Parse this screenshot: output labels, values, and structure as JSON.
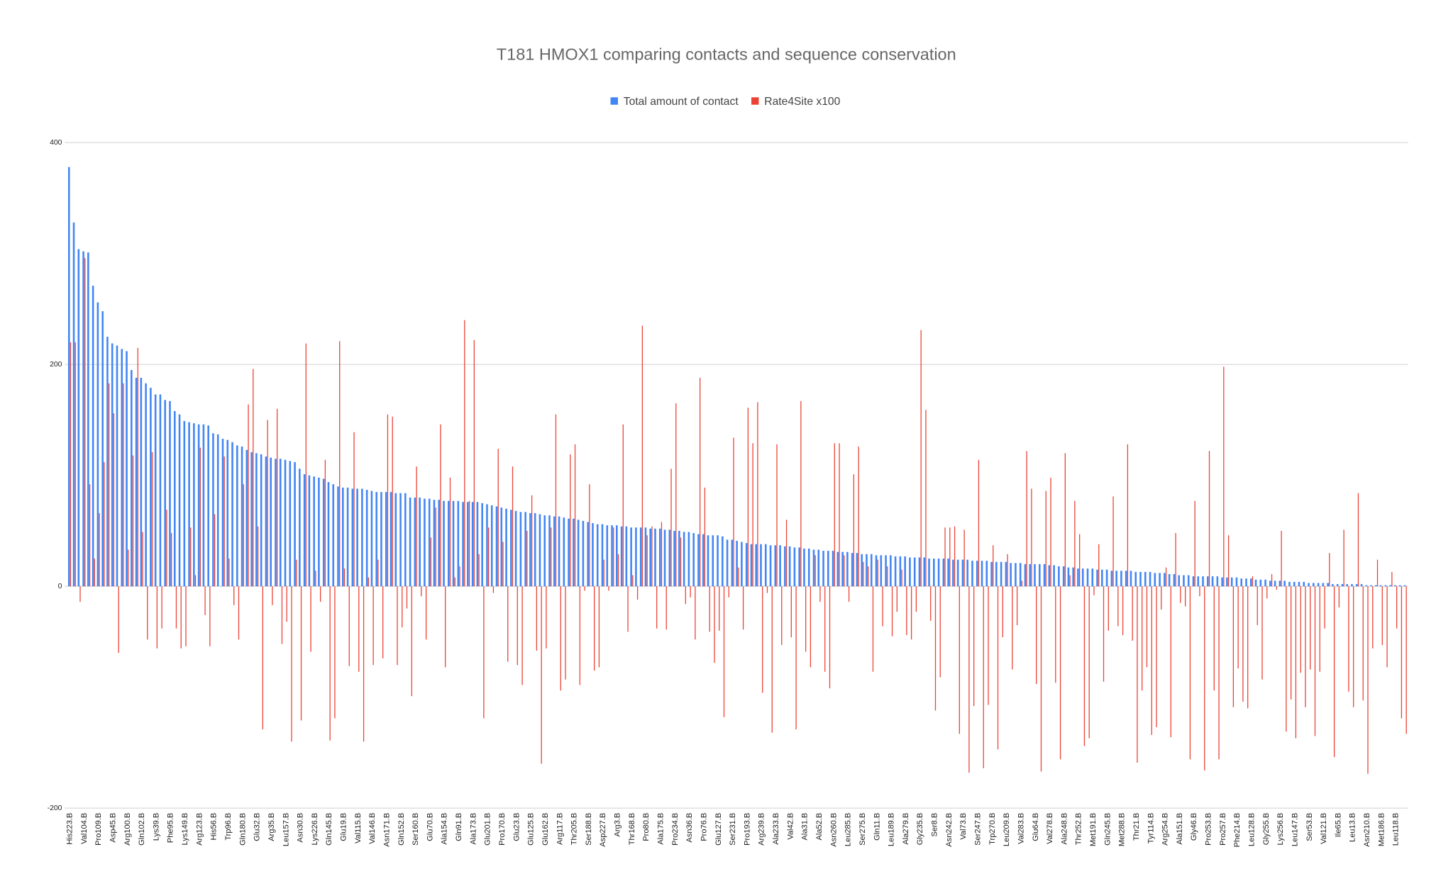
{
  "chart_data": {
    "type": "bar",
    "title": "T181 HMOX1 comparing contacts and sequence conservation",
    "legend": "top",
    "grid": true,
    "ylim": [
      -200,
      400
    ],
    "yticks": [
      -200,
      0,
      200,
      400
    ],
    "categories": [
      "His223.B",
      null,
      null,
      "Val104.B",
      null,
      null,
      "Pro109.B",
      null,
      null,
      "Asp45.B",
      null,
      null,
      "Arg100.B",
      null,
      null,
      "Gln102.B",
      null,
      null,
      "Lys39.B",
      null,
      null,
      "Phe95.B",
      null,
      null,
      "Lys149.B",
      null,
      null,
      "Arg123.B",
      null,
      null,
      "His56.B",
      null,
      null,
      "Trp96.B",
      null,
      null,
      "Gln180.B",
      null,
      null,
      "Glu32.B",
      null,
      null,
      "Arg35.B",
      null,
      null,
      "Leu157.B",
      null,
      null,
      "Asn30.B",
      null,
      null,
      "Lys226.B",
      null,
      null,
      "Gln145.B",
      null,
      null,
      "Glu19.B",
      null,
      null,
      "Val115.B",
      null,
      null,
      "Val146.B",
      null,
      null,
      "Asn171.B",
      null,
      null,
      "Gln152.B",
      null,
      null,
      "Ser160.B",
      null,
      null,
      "Glu70.B",
      null,
      null,
      "Ala154.B",
      null,
      null,
      "Gln91.B",
      null,
      null,
      "Ala173.B",
      null,
      null,
      "Glu201.B",
      null,
      null,
      "Pro170.B",
      null,
      null,
      "Glu23.B",
      null,
      null,
      "Glu125.B",
      null,
      null,
      "Glu162.B",
      null,
      null,
      "Arg117.B",
      null,
      null,
      "Thr205.B",
      null,
      null,
      "Ser188.B",
      null,
      null,
      "Asp227.B",
      null,
      null,
      "Arg3.B",
      null,
      null,
      "Thr168.B",
      null,
      null,
      "Pro80.B",
      null,
      null,
      "Ala175.B",
      null,
      null,
      "Pro234.B",
      null,
      null,
      "Asn36.B",
      null,
      null,
      "Pro76.B",
      null,
      null,
      "Glu127.B",
      null,
      null,
      "Ser231.B",
      null,
      null,
      "Pro193.B",
      null,
      null,
      "Arg239.B",
      null,
      null,
      "Ala233.B",
      null,
      null,
      "Val42.B",
      null,
      null,
      "Ala31.B",
      null,
      null,
      "Ala52.B",
      null,
      null,
      "Asn260.B",
      null,
      null,
      "Leu285.B",
      null,
      null,
      "Ser275.B",
      null,
      null,
      "Gln11.B",
      null,
      null,
      "Leu189.B",
      null,
      null,
      "Ala279.B",
      null,
      null,
      "Gly235.B",
      null,
      null,
      "Ser8.B",
      null,
      null,
      "Asn242.B",
      null,
      null,
      "Val73.B",
      null,
      null,
      "Ser247.B",
      null,
      null,
      "Trp270.B",
      null,
      null,
      "Leu209.B",
      null,
      null,
      "Val283.B",
      null,
      null,
      "Glu64.B",
      null,
      null,
      "Val278.B",
      null,
      null,
      "Ala248.B",
      null,
      null,
      "Thr252.B",
      null,
      null,
      "Met191.B",
      null,
      null,
      "Gln245.B",
      null,
      null,
      "Met288.B",
      null,
      null,
      "Thr21.B",
      null,
      null,
      "Tyr114.B",
      null,
      null,
      "Arg254.B",
      null,
      null,
      "Ala151.B",
      null,
      null,
      "Gly46.B",
      null,
      null,
      "Pro253.B",
      null,
      null,
      "Pro257.B",
      null,
      null,
      "Phe214.B",
      null,
      null,
      "Leu128.B",
      null,
      null,
      "Gly255.B",
      null,
      null,
      "Lys256.B",
      null,
      null,
      "Leu147.B",
      null,
      null,
      "Ser53.B",
      null,
      null,
      "Val121.B",
      null,
      null,
      "Ile65.B",
      null,
      null,
      "Leu13.B",
      null,
      null,
      "Asn210.B",
      null,
      null,
      "Met186.B",
      null,
      null,
      "Leu118.B",
      null,
      null
    ],
    "series": [
      {
        "name": "Total amount of contact",
        "color": "#4285f4",
        "values": [
          378,
          328,
          304,
          302,
          301,
          271,
          256,
          248,
          225,
          219,
          217,
          214,
          212,
          195,
          188,
          188,
          183,
          179,
          173,
          173,
          168,
          167,
          158,
          155,
          149,
          148,
          147,
          146,
          146,
          145,
          138,
          137,
          133,
          132,
          130,
          127,
          126,
          123,
          121,
          120,
          119,
          117,
          116,
          115,
          115,
          114,
          113,
          112,
          106,
          101,
          100,
          99,
          98,
          97,
          94,
          92,
          90,
          89,
          89,
          88,
          88,
          88,
          87,
          86,
          85,
          85,
          85,
          85,
          84,
          84,
          84,
          80,
          80,
          80,
          79,
          79,
          78,
          78,
          77,
          77,
          77,
          77,
          76,
          76,
          76,
          76,
          75,
          74,
          73,
          72,
          71,
          70,
          69,
          68,
          67,
          67,
          66,
          66,
          65,
          64,
          64,
          63,
          63,
          62,
          61,
          61,
          60,
          59,
          58,
          57,
          56,
          56,
          55,
          55,
          55,
          54,
          54,
          53,
          53,
          53,
          53,
          52,
          52,
          52,
          51,
          51,
          50,
          50,
          49,
          49,
          48,
          47,
          47,
          46,
          46,
          46,
          45,
          42,
          42,
          41,
          40,
          39,
          38,
          38,
          38,
          38,
          37,
          37,
          37,
          36,
          36,
          35,
          35,
          34,
          34,
          33,
          33,
          32,
          32,
          32,
          31,
          31,
          31,
          30,
          30,
          29,
          29,
          29,
          28,
          28,
          28,
          28,
          27,
          27,
          27,
          26,
          26,
          26,
          26,
          25,
          25,
          25,
          25,
          25,
          24,
          24,
          24,
          24,
          23,
          23,
          23,
          23,
          22,
          22,
          22,
          22,
          21,
          21,
          21,
          20,
          20,
          20,
          20,
          20,
          19,
          19,
          18,
          18,
          17,
          17,
          16,
          16,
          16,
          16,
          15,
          15,
          15,
          14,
          14,
          14,
          14,
          14,
          13,
          13,
          13,
          13,
          12,
          12,
          12,
          11,
          11,
          10,
          10,
          10,
          9,
          9,
          9,
          9,
          9,
          9,
          8,
          8,
          8,
          8,
          7,
          7,
          7,
          6,
          6,
          6,
          5,
          5,
          5,
          5,
          4,
          4,
          4,
          4,
          3,
          3,
          3,
          3,
          3,
          2,
          2,
          2,
          2,
          2,
          2,
          2,
          1,
          1,
          1,
          1,
          1,
          1,
          1,
          1,
          1
        ]
      },
      {
        "name": "Rate4Site x100",
        "color": "#ea4335",
        "values": [
          220,
          220,
          -14,
          296,
          92,
          25,
          66,
          112,
          183,
          156,
          -60,
          183,
          33,
          118,
          215,
          49,
          -48,
          121,
          -56,
          -38,
          69,
          48,
          -38,
          -56,
          -54,
          53,
          10,
          125,
          -26,
          -54,
          65,
          0,
          117,
          25,
          -17,
          -48,
          92,
          164,
          196,
          54,
          -129,
          150,
          -17,
          160,
          -52,
          -32,
          -140,
          24,
          -121,
          219,
          -59,
          14,
          -14,
          114,
          -139,
          -119,
          221,
          16,
          -72,
          139,
          -77,
          -140,
          8,
          -71,
          24,
          -65,
          155,
          153,
          -71,
          -37,
          -20,
          -99,
          108,
          -9,
          -48,
          44,
          71,
          146,
          -73,
          98,
          8,
          18,
          240,
          77,
          222,
          29,
          -119,
          53,
          -6,
          124,
          40,
          -68,
          108,
          -71,
          -89,
          50,
          82,
          -58,
          -160,
          -56,
          53,
          155,
          -94,
          -84,
          119,
          128,
          -89,
          -4,
          92,
          -76,
          -73,
          24,
          -4,
          53,
          29,
          146,
          -41,
          10,
          -12,
          235,
          46,
          54,
          -38,
          58,
          -39,
          106,
          165,
          44,
          -16,
          -10,
          -48,
          188,
          89,
          -41,
          -69,
          -40,
          -118,
          -10,
          134,
          17,
          -39,
          161,
          129,
          166,
          -96,
          -6,
          -132,
          128,
          -53,
          60,
          -46,
          -129,
          167,
          -59,
          -73,
          28,
          -14,
          -77,
          -92,
          129,
          129,
          28,
          -14,
          101,
          126,
          22,
          18,
          -77,
          24,
          -36,
          18,
          -45,
          -23,
          15,
          -44,
          -48,
          -23,
          231,
          159,
          -31,
          -112,
          -82,
          53,
          53,
          54,
          -133,
          51,
          -168,
          -108,
          114,
          -164,
          -107,
          37,
          -147,
          -46,
          29,
          -75,
          -35,
          5,
          122,
          88,
          -88,
          -167,
          86,
          98,
          -87,
          -156,
          120,
          10,
          77,
          47,
          -144,
          -137,
          -8,
          38,
          -86,
          -40,
          81,
          -36,
          -44,
          128,
          -49,
          -159,
          -94,
          -73,
          -134,
          -127,
          -21,
          17,
          -136,
          48,
          -15,
          -18,
          -156,
          77,
          -9,
          -166,
          122,
          -94,
          -156,
          198,
          46,
          -109,
          -74,
          -104,
          -110,
          9,
          -35,
          -84,
          -11,
          11,
          -3,
          50,
          -131,
          -102,
          -137,
          -78,
          -109,
          -75,
          -135,
          -77,
          -38,
          30,
          -154,
          -19,
          51,
          -95,
          -109,
          84,
          -103,
          -169,
          -56,
          24,
          -53,
          -73,
          13,
          -38,
          -119,
          -133
        ]
      }
    ]
  }
}
